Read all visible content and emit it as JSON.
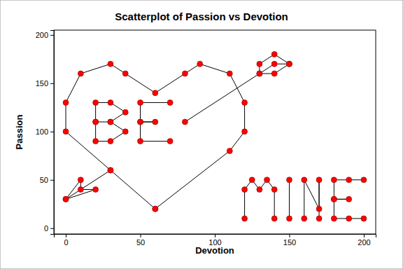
{
  "chart_data": {
    "type": "scatter",
    "title": "Scatterplot of Passion vs Devotion",
    "x_label": "Devotion",
    "y_label": "Passion",
    "x": [
      60,
      30,
      0,
      0,
      10,
      30,
      40,
      60,
      80,
      90,
      110,
      120,
      120,
      110,
      60,
      null,
      30,
      0,
      10,
      10,
      20,
      0,
      null,
      80,
      130,
      140,
      150,
      140,
      130,
      130,
      140,
      150,
      null,
      30,
      20,
      20,
      30,
      40,
      30,
      40,
      30,
      20,
      20,
      null,
      70,
      50,
      50,
      60,
      50,
      50,
      70,
      null,
      120,
      120,
      125,
      130,
      135,
      140,
      140,
      null,
      150,
      150,
      null,
      160,
      160,
      170,
      170,
      170,
      null,
      200,
      190,
      180,
      180,
      190,
      180,
      180,
      190,
      200
    ],
    "series": [
      {
        "color": "#ff0000",
        "marker": "circle",
        "line_style": "solid",
        "values": [
          20,
          60,
          100,
          130,
          160,
          170,
          160,
          140,
          160,
          170,
          160,
          130,
          100,
          80,
          20,
          null,
          60,
          30,
          50,
          40,
          40,
          30,
          null,
          110,
          160,
          170,
          170,
          160,
          160,
          170,
          180,
          170,
          null,
          110,
          110,
          130,
          130,
          120,
          110,
          100,
          90,
          90,
          110,
          null,
          130,
          130,
          110,
          110,
          110,
          90,
          90,
          null,
          10,
          40,
          50,
          40,
          50,
          40,
          10,
          null,
          10,
          50,
          null,
          10,
          50,
          20,
          50,
          10,
          null,
          50,
          50,
          50,
          30,
          30,
          30,
          10,
          10,
          10
        ]
      }
    ],
    "xlim": [
      -8,
      208
    ],
    "ylim": [
      -6,
      205
    ],
    "xticks": [
      0,
      50,
      100,
      150,
      200
    ],
    "yticks": [
      0,
      50,
      100,
      150,
      200
    ],
    "grid": false
  }
}
